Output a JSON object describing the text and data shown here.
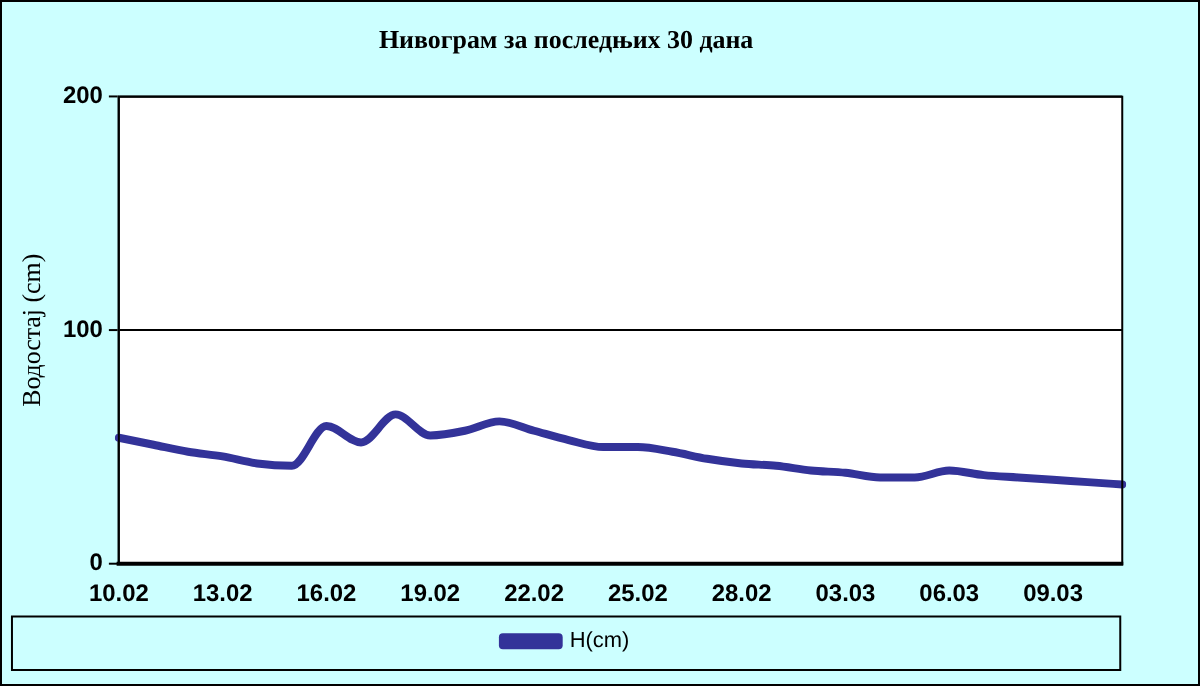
{
  "chart_data": {
    "type": "line",
    "title": "Нивограм за последњих 30 дана",
    "ylabel": "Водостај (cm)",
    "categories": [
      "10.02",
      null,
      null,
      "13.02",
      null,
      null,
      "16.02",
      null,
      null,
      "19.02",
      null,
      null,
      "22.02",
      null,
      null,
      "25.02",
      null,
      null,
      "28.02",
      null,
      null,
      "03.03",
      null,
      null,
      "06.03",
      null,
      null,
      "09.03",
      null,
      null
    ],
    "series": [
      {
        "name": "H(cm)",
        "color": "#333399",
        "values": [
          54,
          51,
          48,
          46,
          43,
          42,
          59,
          52,
          64,
          55,
          57,
          61,
          57,
          53,
          50,
          50,
          48,
          45,
          43,
          42,
          40,
          39,
          37,
          37,
          40,
          38,
          37,
          36,
          35,
          34
        ]
      }
    ],
    "ylim": [
      0,
      200
    ],
    "yticks": [
      0,
      100,
      200
    ],
    "grid": "y",
    "legend": "bottom",
    "marker": "none",
    "line_style": "solid"
  }
}
